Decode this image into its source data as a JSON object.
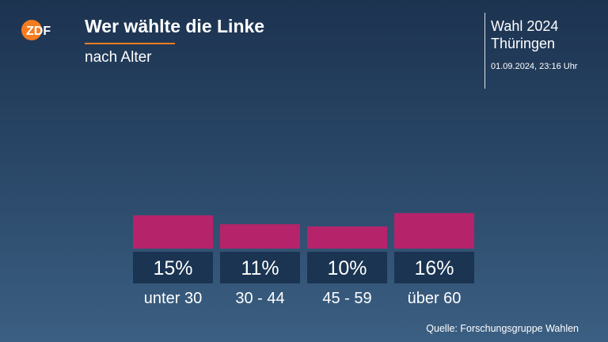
{
  "header": {
    "title": "Wer wählte die Linke",
    "subtitle": "nach Alter",
    "logo_text": "ZDF"
  },
  "panel": {
    "title": "Wahl 2024 Thüringen",
    "line1": "Wahl 2024",
    "line2": "Thüringen",
    "date": "01.09.2024, 23:16 Uhr"
  },
  "source": "Quelle: Forschungsgruppe Wahlen",
  "colors": {
    "bar": "#b5236b",
    "label_box": "#1a3452",
    "accent": "#f47c20"
  },
  "chart_data": {
    "type": "bar",
    "title": "Wer wählte die Linke",
    "subtitle": "nach Alter",
    "categories": [
      "unter 30",
      "30 - 44",
      "45 - 59",
      "über 60"
    ],
    "values": [
      15,
      11,
      10,
      16
    ],
    "value_labels": [
      "15%",
      "11%",
      "10%",
      "16%"
    ],
    "unit": "%",
    "grid": false,
    "legend": "none"
  }
}
